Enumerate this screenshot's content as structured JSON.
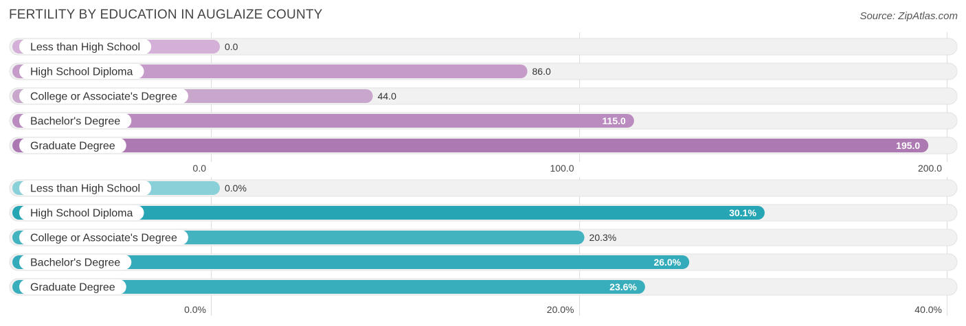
{
  "header": {
    "title": "FERTILITY BY EDUCATION IN AUGLAIZE COUNTY",
    "source": "Source: ZipAtlas.com"
  },
  "chart_data": [
    {
      "type": "bar",
      "orientation": "horizontal",
      "categories": [
        "Less than High School",
        "High School Diploma",
        "College or Associate's Degree",
        "Bachelor's Degree",
        "Graduate Degree"
      ],
      "values": [
        0.0,
        86.0,
        44.0,
        115.0,
        195.0
      ],
      "value_labels": [
        "0.0",
        "86.0",
        "44.0",
        "115.0",
        "195.0"
      ],
      "xlim": [
        0,
        200
      ],
      "ticks": [
        0,
        100,
        200
      ],
      "tick_labels": [
        "0.0",
        "100.0",
        "200.0"
      ],
      "colors": [
        "#d4b0d8",
        "#c49bc9",
        "#c9a7cd",
        "#b98bbf",
        "#ac79b2"
      ],
      "grid": true
    },
    {
      "type": "bar",
      "orientation": "horizontal",
      "categories": [
        "Less than High School",
        "High School Diploma",
        "College or Associate's Degree",
        "Bachelor's Degree",
        "Graduate Degree"
      ],
      "values": [
        0.0,
        30.1,
        20.3,
        26.0,
        23.6
      ],
      "value_labels": [
        "0.0%",
        "30.1%",
        "20.3%",
        "26.0%",
        "23.6%"
      ],
      "xlim": [
        0,
        40
      ],
      "ticks": [
        0,
        20,
        40
      ],
      "tick_labels": [
        "0.0%",
        "20.0%",
        "40.0%"
      ],
      "colors": [
        "#8ad0d8",
        "#26a5b5",
        "#44b3c0",
        "#33abba",
        "#38aebc"
      ],
      "grid": true
    }
  ]
}
